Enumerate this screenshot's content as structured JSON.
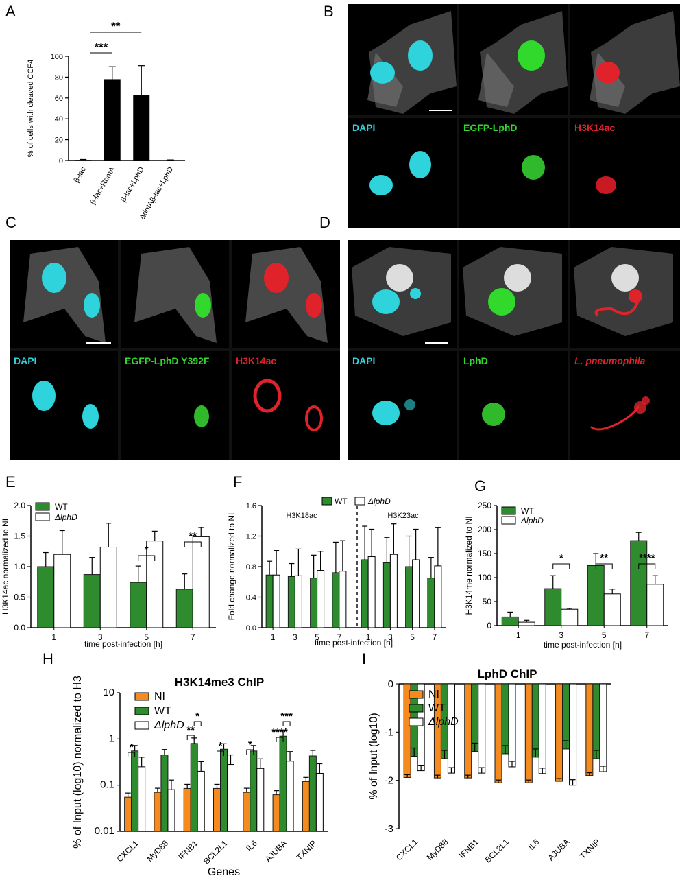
{
  "panel_labels": {
    "A": "A",
    "B": "B",
    "C": "C",
    "D": "D",
    "E": "E",
    "F": "F",
    "G": "G",
    "H": "H",
    "I": "I"
  },
  "micro_labels": {
    "B": [
      "DAPI",
      "EGFP-LphD",
      "H3K14ac"
    ],
    "C": [
      "DAPI",
      "EGFP-LphD Y392F",
      "H3K14ac"
    ],
    "D": [
      "DAPI",
      "LphD",
      "L. pneumophila"
    ]
  },
  "colors": {
    "cyan": "#2fd3dc",
    "green": "#31b92c",
    "red": "#e0232b",
    "bar_green": "#2e8b2e",
    "orange": "#f58a1f"
  },
  "chart_data": [
    {
      "id": "A",
      "type": "bar",
      "ylabel": "% of cells with cleaved CCF4",
      "categories": [
        "β-lac",
        "β-lac+RomA",
        "β-lac+LphD",
        "ΔdotAβ-lac+LphD"
      ],
      "values": [
        0.5,
        78,
        63,
        0.3
      ],
      "errors": [
        0.5,
        12,
        28,
        0.3
      ],
      "ylim": [
        0,
        100
      ],
      "yticks": [
        "0",
        "20",
        "40",
        "60",
        "80",
        "100"
      ],
      "significance": [
        {
          "label": "***",
          "from": 0,
          "to": 1
        },
        {
          "label": "**",
          "from": 0,
          "to": 2
        }
      ]
    },
    {
      "id": "E",
      "type": "bar",
      "ylabel": "H3K14ac normalized to NI",
      "xlabel": "time post-infection [h]",
      "categories": [
        "1",
        "3",
        "5",
        "7"
      ],
      "series": [
        {
          "name": "WT",
          "values": [
            1.0,
            0.87,
            0.74,
            0.63
          ],
          "errors": [
            0.23,
            0.28,
            0.27,
            0.25
          ]
        },
        {
          "name": "ΔlphD",
          "values": [
            1.2,
            1.32,
            1.42,
            1.49
          ],
          "errors": [
            0.39,
            0.39,
            0.16,
            0.15
          ]
        }
      ],
      "ylim": [
        0,
        2.0
      ],
      "yticks": [
        "0.0",
        "0.5",
        "1.0",
        "1.5",
        "2.0"
      ],
      "significance": [
        {
          "label": "*",
          "cat": 2
        },
        {
          "label": "**",
          "cat": 3
        }
      ]
    },
    {
      "id": "F",
      "type": "bar",
      "ylabel": "Fold change normalized to NI",
      "xlabel": "time post-infection [h]",
      "groups": [
        "H3K18ac",
        "H3K23ac"
      ],
      "categories": [
        "1",
        "3",
        "5",
        "7",
        "1",
        "3",
        "5",
        "7"
      ],
      "series": [
        {
          "name": "WT",
          "values": [
            0.69,
            0.67,
            0.65,
            0.72,
            0.89,
            0.85,
            0.8,
            0.65
          ],
          "errors": [
            0.18,
            0.17,
            0.3,
            0.4,
            0.44,
            0.33,
            0.4,
            0.27
          ]
        },
        {
          "name": "ΔlphD",
          "values": [
            0.69,
            0.68,
            0.75,
            0.74,
            0.93,
            0.96,
            0.89,
            0.81
          ],
          "errors": [
            0.32,
            0.35,
            0.25,
            0.4,
            0.36,
            0.4,
            0.4,
            0.5
          ]
        }
      ],
      "ylim": [
        0,
        1.6
      ],
      "yticks": [
        "0.0",
        "0.4",
        "0.8",
        "1.2",
        "1.6"
      ]
    },
    {
      "id": "G",
      "type": "bar",
      "ylabel": "H3K14me normalized to NI",
      "xlabel": "time post-infection [h]",
      "categories": [
        "1",
        "3",
        "5",
        "7"
      ],
      "series": [
        {
          "name": "WT",
          "values": [
            18,
            77,
            125,
            177
          ],
          "errors": [
            10,
            27,
            25,
            17
          ]
        },
        {
          "name": "ΔlphD",
          "values": [
            7,
            34,
            66,
            86
          ],
          "errors": [
            4,
            2,
            10,
            18
          ]
        }
      ],
      "ylim": [
        0,
        250
      ],
      "yticks": [
        "0",
        "50",
        "100",
        "150",
        "200",
        "250"
      ],
      "significance": [
        {
          "label": "*",
          "cat": 1
        },
        {
          "label": "**",
          "cat": 2
        },
        {
          "label": "****",
          "cat": 3
        }
      ]
    },
    {
      "id": "H",
      "type": "bar",
      "title": "H3K14me3 ChIP",
      "ylabel": "% of Input (log10) normalized to H3",
      "xlabel": "Genes",
      "categories": [
        "CXCL1",
        "MyD88",
        "IFNB1",
        "BCL2L1",
        "IL6",
        "AJUBA",
        "TXNIP"
      ],
      "series": [
        {
          "name": "NI",
          "values": [
            0.055,
            0.07,
            0.085,
            0.085,
            0.07,
            0.062,
            0.12
          ]
        },
        {
          "name": "WT",
          "values": [
            0.55,
            0.45,
            0.8,
            0.6,
            0.55,
            1.15,
            0.43
          ]
        },
        {
          "name": "ΔlphD",
          "values": [
            0.25,
            0.08,
            0.2,
            0.28,
            0.23,
            0.33,
            0.18
          ]
        }
      ],
      "yscale": "log",
      "ylim": [
        0.01,
        10
      ],
      "yticks": [
        "0.01",
        "0.1",
        "1",
        "10"
      ],
      "significance": [
        {
          "label": "*",
          "cat": 0
        },
        {
          "label": "**",
          "cat": 2
        },
        {
          "label": "*",
          "cat": 2
        },
        {
          "label": "*",
          "cat": 3
        },
        {
          "label": "*",
          "cat": 4
        },
        {
          "label": "****",
          "cat": 5
        },
        {
          "label": "***",
          "cat": 5
        }
      ]
    },
    {
      "id": "I",
      "type": "bar",
      "title": "LphD ChIP",
      "ylabel": "% of Input (log10)",
      "xlabel": "",
      "categories": [
        "CXCL1",
        "MyD88",
        "IFNB1",
        "BCL2L1",
        "IL6",
        "AJUBA",
        "TXNIP"
      ],
      "series": [
        {
          "name": "NI",
          "values": [
            -1.94,
            -1.95,
            -1.95,
            -2.05,
            -2.05,
            -2.02,
            -1.9
          ]
        },
        {
          "name": "WT",
          "values": [
            -1.5,
            -1.55,
            -1.4,
            -1.45,
            -1.52,
            -1.35,
            -1.55
          ]
        },
        {
          "name": "ΔlphD",
          "values": [
            -1.8,
            -1.85,
            -1.85,
            -1.72,
            -1.86,
            -2.1,
            -1.82
          ]
        }
      ],
      "ylim": [
        -3,
        0
      ],
      "yticks": [
        "-3",
        "-2",
        "-1",
        "0"
      ]
    }
  ]
}
